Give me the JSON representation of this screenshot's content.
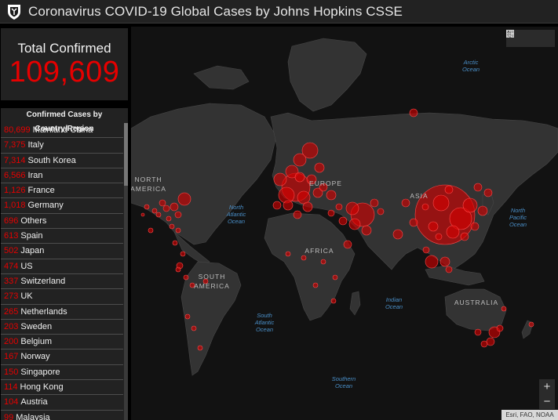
{
  "header": {
    "title": "Coronavirus COVID-19 Global Cases by Johns Hopkins CSSE",
    "logo_icon": "university-shield-icon"
  },
  "total": {
    "label": "Total Confirmed",
    "value": "109,609",
    "value_color": "#e60000"
  },
  "list": {
    "title": "Confirmed Cases by Country/Region",
    "rows": [
      {
        "count": "80,699",
        "name": "Mainland China"
      },
      {
        "count": "7,375",
        "name": "Italy"
      },
      {
        "count": "7,314",
        "name": "South Korea"
      },
      {
        "count": "6,566",
        "name": "Iran"
      },
      {
        "count": "1,126",
        "name": "France"
      },
      {
        "count": "1,018",
        "name": "Germany"
      },
      {
        "count": "696",
        "name": "Others"
      },
      {
        "count": "613",
        "name": "Spain"
      },
      {
        "count": "502",
        "name": "Japan"
      },
      {
        "count": "474",
        "name": "US"
      },
      {
        "count": "337",
        "name": "Switzerland"
      },
      {
        "count": "273",
        "name": "UK"
      },
      {
        "count": "265",
        "name": "Netherlands"
      },
      {
        "count": "203",
        "name": "Sweden"
      },
      {
        "count": "200",
        "name": "Belgium"
      },
      {
        "count": "167",
        "name": "Norway"
      },
      {
        "count": "150",
        "name": "Singapore"
      },
      {
        "count": "114",
        "name": "Hong Kong"
      },
      {
        "count": "104",
        "name": "Austria"
      },
      {
        "count": "99",
        "name": "Malaysia"
      }
    ]
  },
  "map": {
    "labels": {
      "arctic": [
        "Arctic",
        "Ocean"
      ],
      "north_america": [
        "NORTH",
        "AMERICA"
      ],
      "europe": "EUROPE",
      "asia": "ASIA",
      "africa": "AFRICA",
      "south_america": [
        "SOUTH",
        "AMERICA"
      ],
      "australia": "AUSTRALIA",
      "north_atlantic": [
        "North",
        "Atlantic",
        "Ocean"
      ],
      "north_pacific": [
        "North",
        "Pacific",
        "Ocean"
      ],
      "south_atlantic": [
        "South",
        "Atlantic",
        "Ocean"
      ],
      "indian": [
        "Indian",
        "Ocean"
      ],
      "southern": [
        "Southern",
        "Ocean"
      ]
    },
    "tools": {
      "bookmark_icon": "bookmark-icon",
      "legend_icon": "list-icon",
      "basemap_icon": "grid-icon"
    },
    "zoom": {
      "in": "+",
      "out": "−"
    },
    "attribution": "Esri, FAO, NOAA",
    "colors": {
      "ocean": "#121212",
      "land": "#333333",
      "bubble": "#d40000"
    }
  }
}
